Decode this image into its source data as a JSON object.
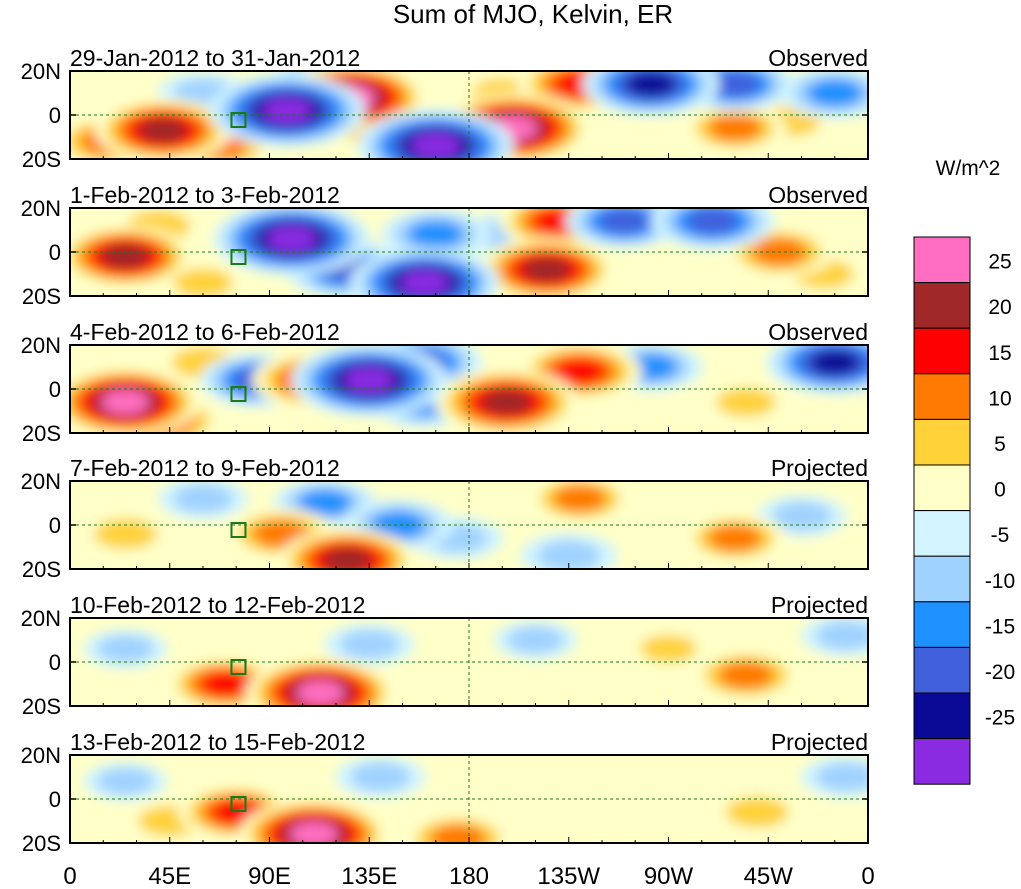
{
  "chart_data": {
    "type": "heatmap",
    "title": "Sum of MJO, Kelvin, ER",
    "units": "W/m^2",
    "x_tick_labels": [
      "0",
      "45E",
      "90E",
      "135E",
      "180",
      "135W",
      "90W",
      "45W",
      "0"
    ],
    "x_ticks_deg": [
      0,
      45,
      90,
      135,
      180,
      225,
      270,
      315,
      360
    ],
    "y_tick_labels": [
      "20N",
      "0",
      "20S"
    ],
    "y_ticks_deg": [
      20,
      0,
      -20
    ],
    "xlim": [
      0,
      360
    ],
    "ylim": [
      -20,
      20
    ],
    "colorbar": {
      "labels": [
        "25",
        "20",
        "15",
        "10",
        "5",
        "0",
        "-5",
        "-10",
        "-15",
        "-20",
        "-25"
      ],
      "levels": [
        25,
        20,
        15,
        10,
        5,
        0,
        -5,
        -10,
        -15,
        -20,
        -25
      ],
      "colors": [
        "#ff6ec0",
        "#a02828",
        "#ff0000",
        "#ff7a00",
        "#ffd23a",
        "#ffffc8",
        "#d2f5ff",
        "#a0d2ff",
        "#1e90ff",
        "#4060dc",
        "#0a0a96",
        "#8a2be2"
      ]
    },
    "panels": [
      {
        "date_range": "29-Jan-2012 to 31-Jan-2012",
        "status": "Observed",
        "anomalies": [
          {
            "lon": 42,
            "lat": -7,
            "v": 22
          },
          {
            "lon": 17,
            "lat": -12,
            "v": 14
          },
          {
            "lon": 68,
            "lat": -14,
            "v": 12
          },
          {
            "lon": 98,
            "lat": 2,
            "v": -28
          },
          {
            "lon": 120,
            "lat": 12,
            "v": -24
          },
          {
            "lon": 165,
            "lat": -14,
            "v": -28
          },
          {
            "lon": 127,
            "lat": 8,
            "v": 26
          },
          {
            "lon": 140,
            "lat": -3,
            "v": 16
          },
          {
            "lon": 200,
            "lat": -6,
            "v": 27
          },
          {
            "lon": 230,
            "lat": 14,
            "v": 18
          },
          {
            "lon": 262,
            "lat": 14,
            "v": -22
          },
          {
            "lon": 300,
            "lat": 14,
            "v": -16
          },
          {
            "lon": 300,
            "lat": -6,
            "v": 12
          },
          {
            "lon": 325,
            "lat": -3,
            "v": 8
          },
          {
            "lon": 345,
            "lat": 10,
            "v": -14
          },
          {
            "lon": 60,
            "lat": 10,
            "v": -8
          },
          {
            "lon": 195,
            "lat": 10,
            "v": 8
          }
        ]
      },
      {
        "date_range": "1-Feb-2012 to 3-Feb-2012",
        "status": "Observed",
        "anomalies": [
          {
            "lon": 25,
            "lat": -2,
            "v": 21
          },
          {
            "lon": 40,
            "lat": 12,
            "v": 10
          },
          {
            "lon": 100,
            "lat": 6,
            "v": -28
          },
          {
            "lon": 125,
            "lat": -8,
            "v": -18
          },
          {
            "lon": 160,
            "lat": -14,
            "v": -26
          },
          {
            "lon": 165,
            "lat": 8,
            "v": -14
          },
          {
            "lon": 220,
            "lat": 14,
            "v": 16
          },
          {
            "lon": 215,
            "lat": -8,
            "v": 22
          },
          {
            "lon": 250,
            "lat": 14,
            "v": -16
          },
          {
            "lon": 290,
            "lat": 14,
            "v": -18
          },
          {
            "lon": 320,
            "lat": 0,
            "v": 14
          },
          {
            "lon": 340,
            "lat": -10,
            "v": 8
          },
          {
            "lon": 195,
            "lat": 8,
            "v": -8
          },
          {
            "lon": 60,
            "lat": -14,
            "v": 8
          }
        ]
      },
      {
        "date_range": "4-Feb-2012 to 6-Feb-2012",
        "status": "Observed",
        "anomalies": [
          {
            "lon": 25,
            "lat": -6,
            "v": 26
          },
          {
            "lon": 40,
            "lat": -14,
            "v": 18
          },
          {
            "lon": 85,
            "lat": 4,
            "v": -16
          },
          {
            "lon": 110,
            "lat": 4,
            "v": 18
          },
          {
            "lon": 135,
            "lat": 4,
            "v": -28
          },
          {
            "lon": 160,
            "lat": -6,
            "v": -14
          },
          {
            "lon": 158,
            "lat": 12,
            "v": -18
          },
          {
            "lon": 197,
            "lat": -6,
            "v": 24
          },
          {
            "lon": 230,
            "lat": 8,
            "v": 18
          },
          {
            "lon": 262,
            "lat": 10,
            "v": -12
          },
          {
            "lon": 305,
            "lat": -6,
            "v": 8
          },
          {
            "lon": 345,
            "lat": 12,
            "v": -22
          },
          {
            "lon": 60,
            "lat": 12,
            "v": 10
          }
        ]
      },
      {
        "date_range": "7-Feb-2012 to 9-Feb-2012",
        "status": "Projected",
        "anomalies": [
          {
            "lon": 25,
            "lat": -4,
            "v": 10
          },
          {
            "lon": 95,
            "lat": -4,
            "v": 14
          },
          {
            "lon": 115,
            "lat": 10,
            "v": -12
          },
          {
            "lon": 125,
            "lat": -16,
            "v": 22
          },
          {
            "lon": 148,
            "lat": 0,
            "v": -14
          },
          {
            "lon": 175,
            "lat": -6,
            "v": -8
          },
          {
            "lon": 230,
            "lat": 12,
            "v": 12
          },
          {
            "lon": 300,
            "lat": -6,
            "v": 12
          },
          {
            "lon": 330,
            "lat": 4,
            "v": -8
          },
          {
            "lon": 60,
            "lat": 12,
            "v": -8
          },
          {
            "lon": 225,
            "lat": -14,
            "v": -10
          }
        ]
      },
      {
        "date_range": "10-Feb-2012 to 12-Feb-2012",
        "status": "Projected",
        "anomalies": [
          {
            "lon": 70,
            "lat": -10,
            "v": 16
          },
          {
            "lon": 113,
            "lat": -14,
            "v": 26
          },
          {
            "lon": 135,
            "lat": 8,
            "v": -8
          },
          {
            "lon": 305,
            "lat": -6,
            "v": 14
          },
          {
            "lon": 25,
            "lat": 6,
            "v": -6
          },
          {
            "lon": 350,
            "lat": 12,
            "v": -8
          },
          {
            "lon": 210,
            "lat": 10,
            "v": -6
          },
          {
            "lon": 270,
            "lat": 6,
            "v": 6
          }
        ]
      },
      {
        "date_range": "13-Feb-2012 to 15-Feb-2012",
        "status": "Projected",
        "anomalies": [
          {
            "lon": 75,
            "lat": -6,
            "v": 16
          },
          {
            "lon": 110,
            "lat": -16,
            "v": 26
          },
          {
            "lon": 45,
            "lat": -10,
            "v": 10
          },
          {
            "lon": 175,
            "lat": -18,
            "v": 14
          },
          {
            "lon": 310,
            "lat": -6,
            "v": 10
          },
          {
            "lon": 140,
            "lat": 10,
            "v": -8
          },
          {
            "lon": 25,
            "lat": 8,
            "v": -6
          },
          {
            "lon": 350,
            "lat": 10,
            "v": -8
          }
        ]
      }
    ]
  }
}
